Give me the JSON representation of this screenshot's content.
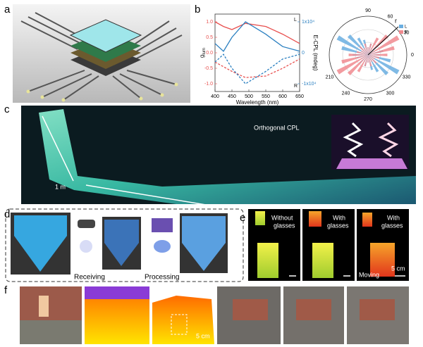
{
  "panel_labels": [
    "a",
    "b",
    "c",
    "d",
    "e",
    "f"
  ],
  "panel_b": {
    "spectrum": {
      "type": "line",
      "x_label": "Wavelength (nm)",
      "y_label": {
        "main": "g",
        "sub": "lum"
      },
      "y2_label": "E-CPL (mdeg)",
      "x": [
        400,
        425,
        450,
        490,
        550,
        600,
        650
      ],
      "series": [
        {
          "color": "#e8504f",
          "dash": false,
          "values": [
            1.0,
            0.85,
            0.75,
            0.95,
            0.85,
            0.6,
            0.3
          ]
        },
        {
          "color": "#e8504f",
          "dash": true,
          "values": [
            -0.3,
            -0.45,
            -0.6,
            -0.8,
            -0.75,
            -0.5,
            -0.2
          ]
        },
        {
          "color": "#2a7fc0",
          "dash": false,
          "axis": "y2",
          "values": [
            3000,
            500,
            5000,
            10000,
            6000,
            2000,
            500
          ]
        },
        {
          "color": "#2a7fc0",
          "dash": true,
          "axis": "y2",
          "values": [
            -3000,
            -500,
            -5000,
            -10000,
            -6000,
            -2000,
            -500
          ]
        }
      ],
      "xlim": [
        400,
        650
      ],
      "xticks": [
        400,
        450,
        500,
        550,
        600,
        650
      ],
      "ylim": [
        -1.25,
        1.25
      ],
      "yticks": [
        {
          "value": 1,
          "label": "1.0"
        },
        0.5,
        {
          "value": 0,
          "label": "0.0"
        },
        -0.5,
        {
          "value": -1,
          "label": "-1.0"
        }
      ],
      "y2lim": [
        -12500,
        12500
      ],
      "y2ticks": [
        {
          "value": 10000,
          "label": "1x10⁴"
        },
        0,
        {
          "value": -10000,
          "label": "-1x10⁴"
        }
      ],
      "annotations": [
        "L",
        "R"
      ]
    },
    "polar": {
      "type": "polar-bar",
      "radius_label": "r",
      "rlim": [
        0,
        1
      ],
      "angle_ticks": [
        90,
        60,
        30,
        0,
        330,
        300,
        270,
        240,
        210
      ],
      "angles": [
        0,
        15,
        30,
        45,
        60,
        75,
        90,
        105,
        120,
        135,
        150,
        165,
        180,
        195,
        210,
        225,
        240,
        255,
        270,
        285,
        300,
        315,
        330,
        345
      ],
      "series": [
        {
          "name": "L",
          "color": "#6aaee0",
          "values": [
            0.3,
            0.4,
            0.2,
            0.3,
            0.2,
            0.3,
            0.2,
            0.4,
            0.5,
            0.7,
            0.9,
            0.7,
            0.4,
            0.3,
            0.2,
            0.3,
            0.2,
            0.3,
            0.2,
            0.4,
            0.5,
            0.7,
            0.9,
            0.6
          ]
        },
        {
          "name": "R",
          "color": "#f08a8f",
          "values": [
            0.5,
            0.7,
            0.9,
            0.7,
            0.5,
            0.3,
            0.2,
            0.3,
            0.2,
            0.3,
            0.2,
            0.3,
            0.5,
            0.7,
            0.9,
            0.7,
            0.5,
            0.3,
            0.2,
            0.3,
            0.2,
            0.3,
            0.2,
            0.3
          ]
        }
      ]
    }
  },
  "panel_c": {
    "caption": "Orthogonal CPL",
    "scale": "1 m"
  },
  "panel_d": {
    "steps": [
      "Receiving",
      "Processing"
    ]
  },
  "panel_e": {
    "frames": [
      {
        "caption": [
          "Without",
          "glasses"
        ]
      },
      {
        "caption": [
          "With",
          "glasses"
        ]
      },
      {
        "caption": [
          "With",
          "glasses"
        ],
        "note": "Moving",
        "scale": "5 cm"
      }
    ]
  },
  "panel_f": {
    "scale": "5 cm"
  }
}
